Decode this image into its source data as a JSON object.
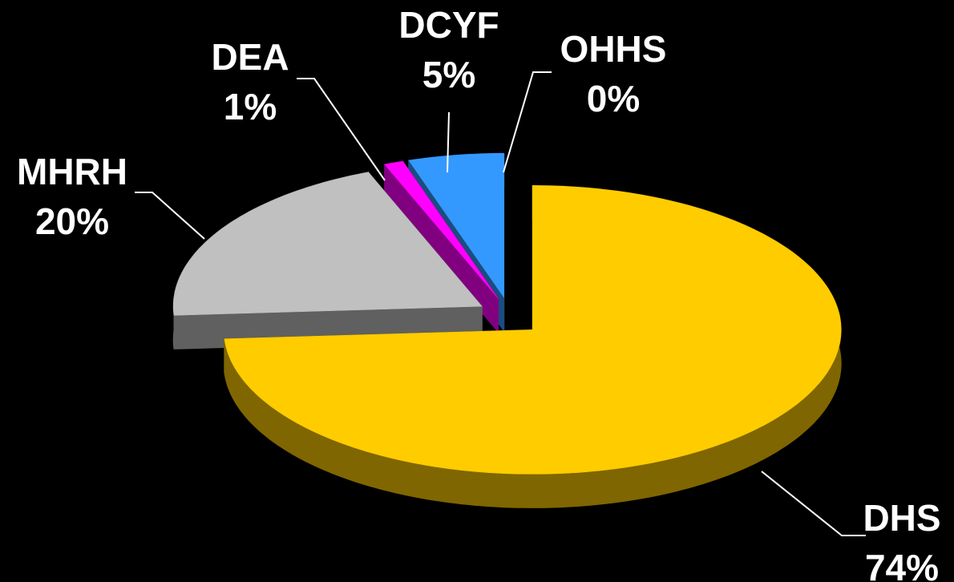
{
  "chart_data": {
    "type": "pie3d",
    "categories": [
      "DHS",
      "MHRH",
      "DEA",
      "DCYF",
      "OHHS"
    ],
    "values": [
      74,
      20,
      1,
      5,
      0
    ],
    "value_labels": [
      "74%",
      "20%",
      "1%",
      "5%",
      "0%"
    ],
    "colors": [
      "#ffcc00",
      "#c0c0c0",
      "#ff00ff",
      "#3399ff",
      "#000080"
    ]
  }
}
